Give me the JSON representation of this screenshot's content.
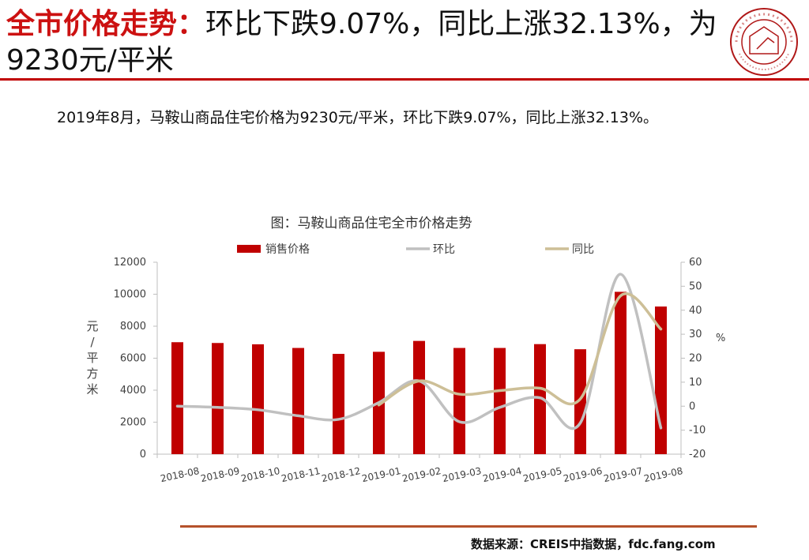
{
  "header": {
    "title_highlight": "全市价格走势：",
    "title_rest": "环比下跌9.07%，同比上涨32.13%，为9230元/平米"
  },
  "summary": "2019年8月，马鞍山商品住宅价格为9230元/平米，环比下跌9.07%，同比上涨32.13%。",
  "source": "数据来源：CREIS中指数据，fdc.fang.com",
  "colors": {
    "accent": "#c00000",
    "bar": "#c00000",
    "mom_line": "#c0c0c0",
    "yoy_line": "#cdbf97",
    "bottom_rule": "#b5522b"
  },
  "chart_data": {
    "type": "bar",
    "title": "图：马鞍山商品住宅全市价格走势",
    "categories": [
      "2018-08",
      "2018-09",
      "2018-10",
      "2018-11",
      "2018-12",
      "2019-01",
      "2019-02",
      "2019-03",
      "2019-04",
      "2019-05",
      "2019-06",
      "2019-07",
      "2019-08"
    ],
    "series": [
      {
        "name": "销售价格",
        "type": "bar",
        "axis": "left",
        "values": [
          7000,
          6950,
          6870,
          6640,
          6270,
          6400,
          7080,
          6640,
          6640,
          6880,
          6560,
          10150,
          9230
        ]
      },
      {
        "name": "环比",
        "type": "line",
        "axis": "right",
        "values": [
          0,
          -0.5,
          -1.5,
          -4,
          -5.5,
          1.5,
          10.5,
          -6.5,
          -0.5,
          3.5,
          -7,
          55,
          -9.07
        ]
      },
      {
        "name": "同比",
        "type": "line",
        "axis": "right",
        "values": [
          null,
          null,
          null,
          null,
          null,
          0.5,
          10.5,
          5,
          6.5,
          7.5,
          3,
          46,
          32.13
        ]
      }
    ],
    "ylabel": "元/平方米",
    "y2label": "%",
    "ylim": [
      0,
      12000
    ],
    "yticks": [
      0,
      2000,
      4000,
      6000,
      8000,
      10000,
      12000
    ],
    "y2lim": [
      -20,
      60
    ],
    "y2ticks": [
      -20,
      -10,
      0,
      10,
      20,
      30,
      40,
      50,
      60
    ],
    "legend": "top",
    "grid": false
  }
}
